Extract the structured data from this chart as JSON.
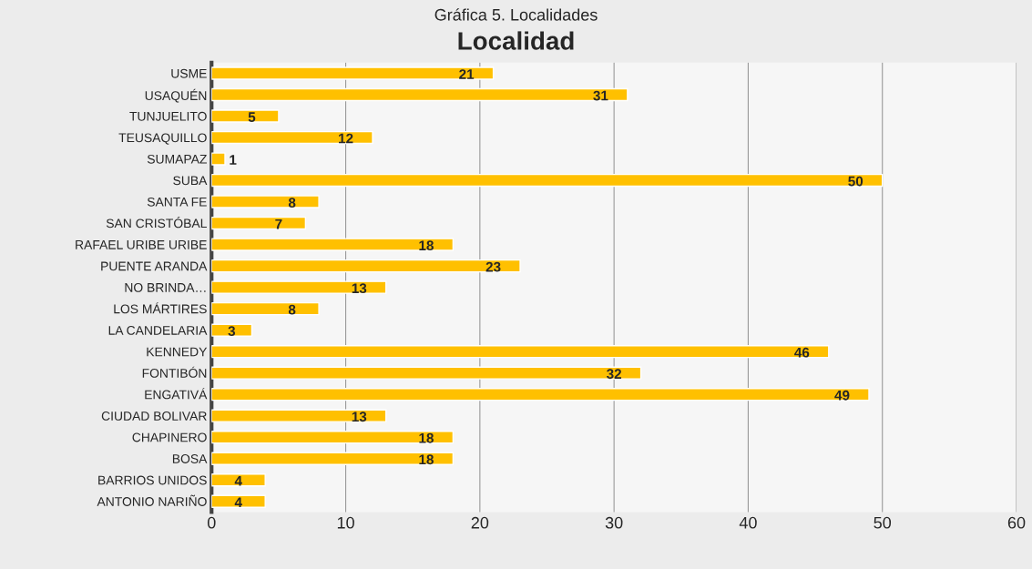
{
  "chart_data": {
    "type": "bar",
    "orientation": "horizontal",
    "title": "Gráfica 5. Localidades",
    "subtitle": "Localidad",
    "categories": [
      "USME",
      "USAQUÉN",
      "TUNJUELITO",
      "TEUSAQUILLO",
      "SUMAPAZ",
      "SUBA",
      "SANTA FE",
      "SAN CRISTÓBAL",
      "RAFAEL URIBE URIBE",
      "PUENTE ARANDA",
      "NO BRINDA…",
      "LOS MÁRTIRES",
      "LA CANDELARIA",
      "KENNEDY",
      "FONTIBÓN",
      "ENGATIVÁ",
      "CIUDAD BOLIVAR",
      "CHAPINERO",
      "BOSA",
      "BARRIOS UNIDOS",
      "ANTONIO NARIÑO"
    ],
    "values": [
      21,
      31,
      5,
      12,
      1,
      50,
      8,
      7,
      18,
      23,
      13,
      8,
      3,
      46,
      32,
      49,
      13,
      18,
      18,
      4,
      4
    ],
    "color": "#ffc000",
    "xlim": [
      0,
      60
    ],
    "xticks": [
      0,
      10,
      20,
      30,
      40,
      50,
      60
    ],
    "grid": "x",
    "data_labels": true,
    "legend": false
  }
}
